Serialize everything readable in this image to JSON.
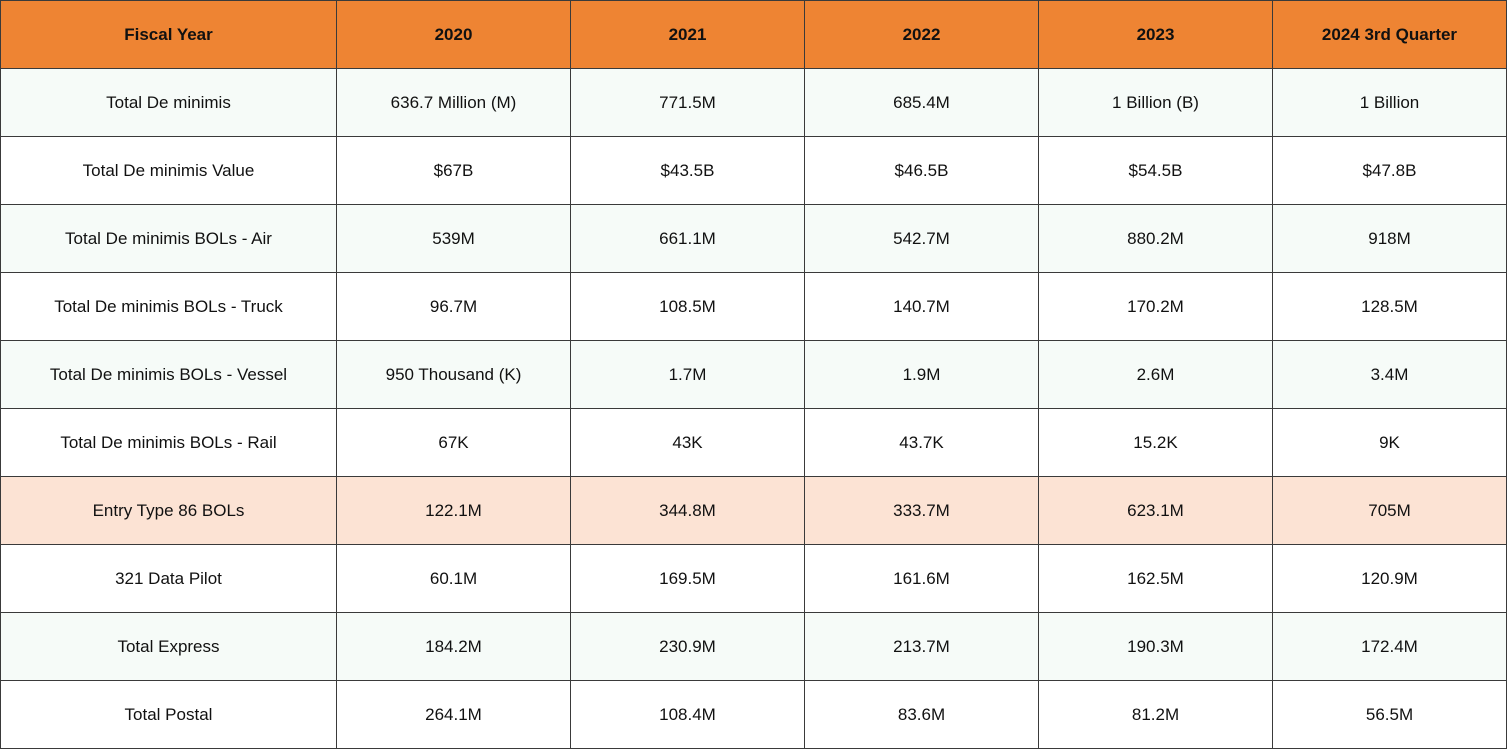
{
  "table": {
    "header": [
      "Fiscal Year",
      "2020",
      "2021",
      "2022",
      "2023",
      "2024 3rd Quarter"
    ],
    "rows": [
      [
        "Total De minimis",
        "636.7 Million (M)",
        "771.5M",
        "685.4M",
        "1 Billion (B)",
        "1 Billion"
      ],
      [
        "Total De minimis Value",
        "$67B",
        "$43.5B",
        "$46.5B",
        "$54.5B",
        "$47.8B"
      ],
      [
        "Total De minimis BOLs - Air",
        "539M",
        "661.1M",
        "542.7M",
        "880.2M",
        "918M"
      ],
      [
        "Total De minimis BOLs - Truck",
        "96.7M",
        "108.5M",
        "140.7M",
        "170.2M",
        "128.5M"
      ],
      [
        "Total De minimis BOLs - Vessel",
        "950 Thousand (K)",
        "1.7M",
        "1.9M",
        "2.6M",
        "3.4M"
      ],
      [
        "Total De minimis BOLs - Rail",
        "67K",
        "43K",
        "43.7K",
        "15.2K",
        "9K"
      ],
      [
        "Entry Type 86 BOLs",
        "122.1M",
        "344.8M",
        "333.7M",
        "623.1M",
        "705M"
      ],
      [
        "321 Data Pilot",
        "60.1M",
        "169.5M",
        "161.6M",
        "162.5M",
        "120.9M"
      ],
      [
        "Total Express",
        "184.2M",
        "230.9M",
        "213.7M",
        "190.3M",
        "172.4M"
      ],
      [
        "Total Postal",
        "264.1M",
        "108.4M",
        "83.6M",
        "81.2M",
        "56.5M"
      ]
    ]
  }
}
